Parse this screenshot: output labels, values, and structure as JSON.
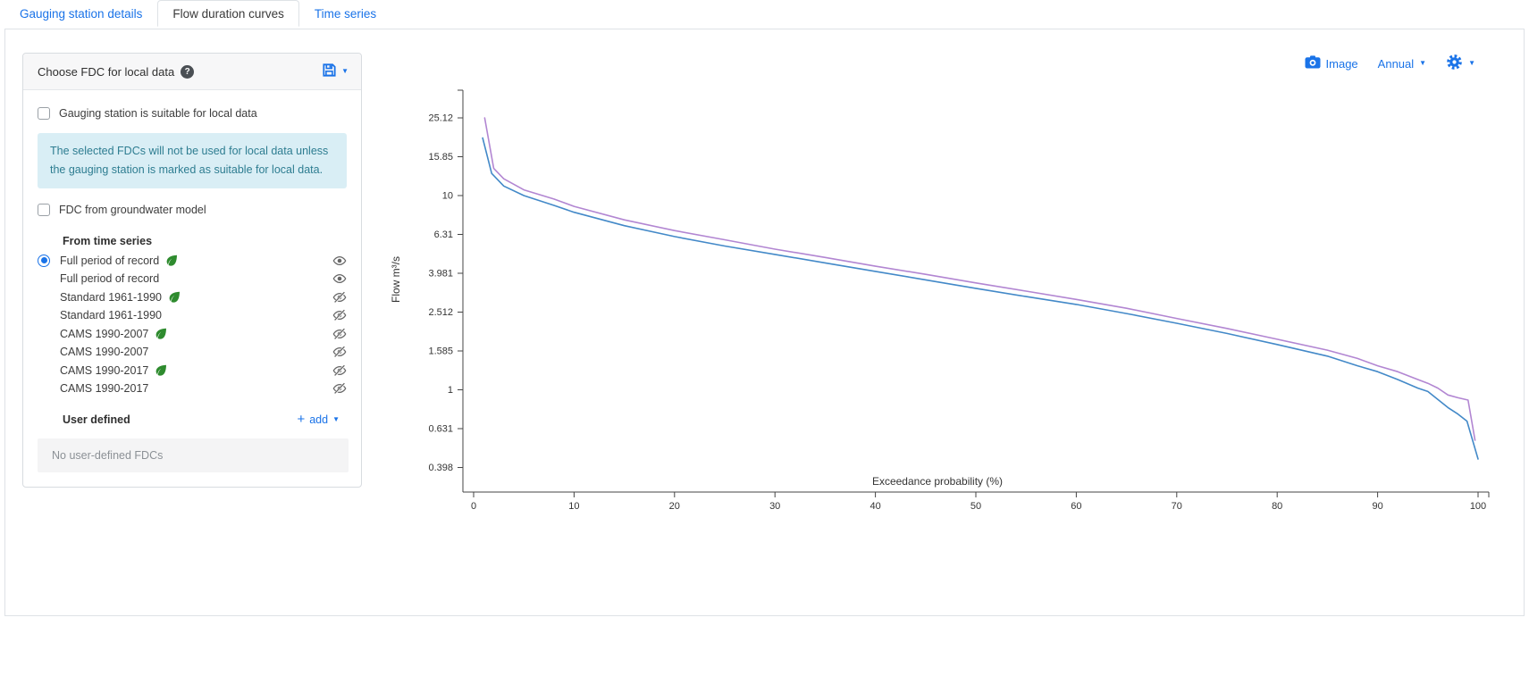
{
  "tabs": [
    {
      "label": "Gauging station details",
      "active": false
    },
    {
      "label": "Flow duration curves",
      "active": true
    },
    {
      "label": "Time series",
      "active": false
    }
  ],
  "panel": {
    "title": "Choose FDC for local data",
    "help_glyph": "?",
    "suitable_checkbox_label": "Gauging station is suitable for local data",
    "alert_text": "The selected FDCs will not be used for local data unless the gauging station is marked as suitable for local data.",
    "groundwater_checkbox_label": "FDC from groundwater model",
    "time_series_heading": "From time series",
    "items": [
      {
        "label": "Full period of record",
        "leaf": true,
        "visible": true,
        "selected": true
      },
      {
        "label": "Full period of record",
        "leaf": false,
        "visible": true,
        "selected": false
      },
      {
        "label": "Standard 1961-1990",
        "leaf": true,
        "visible": false,
        "selected": false
      },
      {
        "label": "Standard 1961-1990",
        "leaf": false,
        "visible": false,
        "selected": false
      },
      {
        "label": "CAMS 1990-2007",
        "leaf": true,
        "visible": false,
        "selected": false
      },
      {
        "label": "CAMS 1990-2007",
        "leaf": false,
        "visible": false,
        "selected": false
      },
      {
        "label": "CAMS 1990-2017",
        "leaf": true,
        "visible": false,
        "selected": false
      },
      {
        "label": "CAMS 1990-2017",
        "leaf": false,
        "visible": false,
        "selected": false
      }
    ],
    "user_defined_heading": "User defined",
    "add_label": "add",
    "no_user_fdcs_text": "No user-defined FDCs"
  },
  "controls": {
    "image_label": "Image",
    "period_label": "Annual"
  },
  "colors": {
    "accent_blue": "#1a73e8",
    "curve_blue": "#4389c8",
    "curve_purple": "#b286d2",
    "alert_bg": "#d9eef5",
    "alert_text": "#2e7d91",
    "leaf_green": "#2e8b2e",
    "icon_gray": "#666666"
  },
  "chart_data": {
    "type": "line",
    "xlabel": "Exceedance probability (%)",
    "ylabel": "Flow m³/s",
    "y_scale": "log",
    "grid": false,
    "legend": "none",
    "xlim": [
      0,
      100
    ],
    "x_ticks": [
      0,
      10,
      20,
      30,
      40,
      50,
      60,
      70,
      80,
      90,
      100
    ],
    "y_ticks": [
      25.12,
      15.85,
      10,
      6.31,
      3.981,
      2.512,
      1.585,
      1,
      0.631,
      0.398
    ],
    "series": [
      {
        "name": "Full period of record",
        "color": "#b286d2",
        "points": [
          [
            1.1,
            25.1
          ],
          [
            2.0,
            13.8
          ],
          [
            3,
            12.2
          ],
          [
            5,
            10.7
          ],
          [
            8,
            9.6
          ],
          [
            10,
            8.8
          ],
          [
            15,
            7.5
          ],
          [
            20,
            6.6
          ],
          [
            25,
            5.92
          ],
          [
            30,
            5.3
          ],
          [
            35,
            4.8
          ],
          [
            40,
            4.33
          ],
          [
            45,
            3.93
          ],
          [
            50,
            3.55
          ],
          [
            55,
            3.22
          ],
          [
            60,
            2.92
          ],
          [
            65,
            2.63
          ],
          [
            70,
            2.33
          ],
          [
            75,
            2.07
          ],
          [
            80,
            1.82
          ],
          [
            85,
            1.6
          ],
          [
            88,
            1.45
          ],
          [
            90,
            1.33
          ],
          [
            92,
            1.24
          ],
          [
            94,
            1.13
          ],
          [
            95,
            1.08
          ],
          [
            96,
            1.02
          ],
          [
            97,
            0.94
          ],
          [
            98,
            0.91
          ],
          [
            99,
            0.885
          ],
          [
            99.7,
            0.55
          ]
        ]
      },
      {
        "name": "Full period of record",
        "color": "#4389c8",
        "points": [
          [
            0.9,
            19.8
          ],
          [
            1.8,
            13.0
          ],
          [
            3,
            11.2
          ],
          [
            5,
            10.0
          ],
          [
            8,
            8.9
          ],
          [
            10,
            8.2
          ],
          [
            15,
            7.0
          ],
          [
            20,
            6.15
          ],
          [
            25,
            5.5
          ],
          [
            30,
            4.98
          ],
          [
            35,
            4.5
          ],
          [
            40,
            4.07
          ],
          [
            45,
            3.68
          ],
          [
            50,
            3.33
          ],
          [
            55,
            3.02
          ],
          [
            60,
            2.75
          ],
          [
            65,
            2.47
          ],
          [
            70,
            2.2
          ],
          [
            75,
            1.95
          ],
          [
            80,
            1.71
          ],
          [
            85,
            1.49
          ],
          [
            88,
            1.33
          ],
          [
            90,
            1.24
          ],
          [
            92,
            1.13
          ],
          [
            94,
            1.02
          ],
          [
            95,
            0.98
          ],
          [
            97,
            0.81
          ],
          [
            98,
            0.75
          ],
          [
            98.9,
            0.69
          ],
          [
            100,
            0.44
          ]
        ]
      }
    ]
  }
}
